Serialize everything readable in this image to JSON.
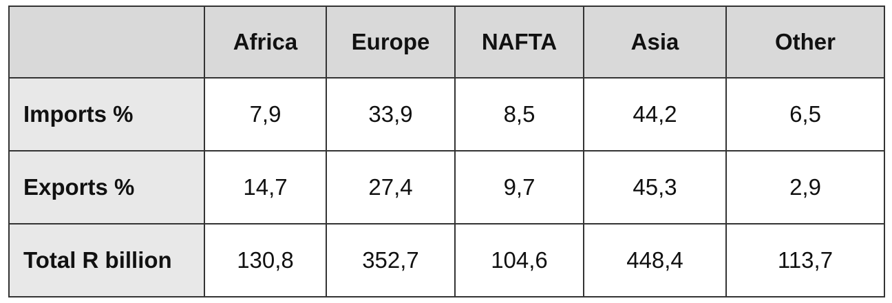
{
  "table": {
    "corner": "",
    "columns": [
      "Africa",
      "Europe",
      "NAFTA",
      "Asia",
      "Other"
    ],
    "rows": [
      {
        "label": "Imports %",
        "values": [
          "7,9",
          "33,9",
          "8,5",
          "44,2",
          "6,5"
        ]
      },
      {
        "label": "Exports %",
        "values": [
          "14,7",
          "27,4",
          "9,7",
          "45,3",
          "2,9"
        ]
      },
      {
        "label": "Total R billion",
        "values": [
          "130,8",
          "352,7",
          "104,6",
          "448,4",
          "113,7"
        ]
      }
    ]
  },
  "colors": {
    "header_bg": "#d9d9d9",
    "row_header_bg": "#e8e8e8",
    "border": "#333333"
  }
}
